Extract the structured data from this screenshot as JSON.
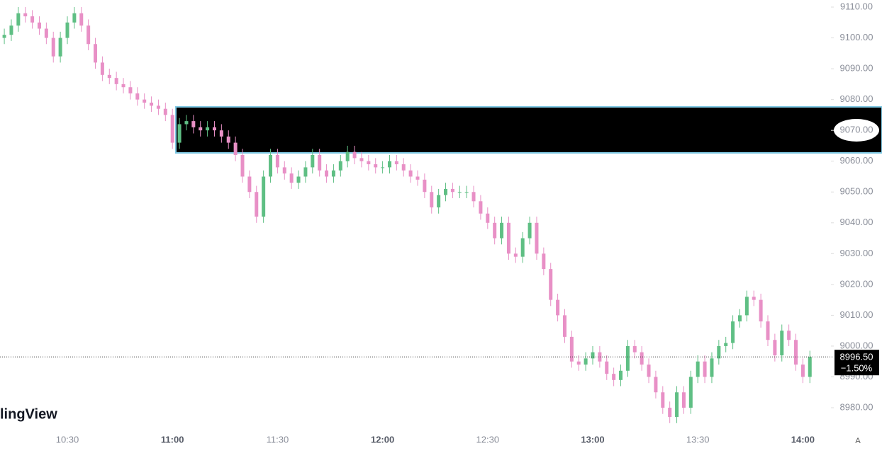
{
  "chart_data": {
    "type": "candlestick",
    "watermark": "lingView",
    "button": "A",
    "colors": {
      "up": "#5fbf84",
      "down": "#e890c6"
    },
    "x": [
      "10:12",
      "10:14",
      "10:16",
      "10:18",
      "10:20",
      "10:22",
      "10:24",
      "10:26",
      "10:28",
      "10:30",
      "10:32",
      "10:34",
      "10:36",
      "10:38",
      "10:40",
      "10:42",
      "10:44",
      "10:46",
      "10:48",
      "10:50",
      "10:52",
      "10:54",
      "10:56",
      "10:58",
      "11:00",
      "11:02",
      "11:04",
      "11:06",
      "11:08",
      "11:10",
      "11:12",
      "11:14",
      "11:16",
      "11:18",
      "11:20",
      "11:22",
      "11:24",
      "11:26",
      "11:28",
      "11:30",
      "11:32",
      "11:34",
      "11:36",
      "11:38",
      "11:40",
      "11:42",
      "11:44",
      "11:46",
      "11:48",
      "11:50",
      "11:52",
      "11:54",
      "11:56",
      "11:58",
      "12:00",
      "12:02",
      "12:04",
      "12:06",
      "12:08",
      "12:10",
      "12:12",
      "12:14",
      "12:16",
      "12:18",
      "12:20",
      "12:22",
      "12:24",
      "12:26",
      "12:28",
      "12:30",
      "12:32",
      "12:34",
      "12:36",
      "12:38",
      "12:40",
      "12:42",
      "12:44",
      "12:46",
      "12:48",
      "12:50",
      "12:52",
      "12:54",
      "12:56",
      "12:58",
      "13:00",
      "13:02",
      "13:04",
      "13:06",
      "13:08",
      "13:10",
      "13:12",
      "13:14",
      "13:16",
      "13:18",
      "13:20",
      "13:22",
      "13:24",
      "13:26",
      "13:28",
      "13:30",
      "13:32",
      "13:34",
      "13:36",
      "13:38",
      "13:40",
      "13:42",
      "13:44",
      "13:46",
      "13:48",
      "13:50",
      "13:52",
      "13:54",
      "13:56",
      "13:58",
      "14:00",
      "14:02"
    ],
    "open": [
      9100,
      9101,
      9104,
      9108,
      9107,
      9105,
      9103,
      9100,
      9094,
      9100,
      9105,
      9108,
      9104,
      9098,
      9092,
      9088,
      9087,
      9085,
      9084,
      9082,
      9080,
      9079,
      9078,
      9077,
      9075,
      9066,
      9072,
      9073,
      9071,
      9070,
      9071,
      9070,
      9068,
      9066,
      9062,
      9055,
      9050,
      9042,
      9055,
      9062,
      9058,
      9056,
      9053,
      9055,
      9058,
      9062,
      9057,
      9055,
      9057,
      9060,
      9063,
      9061,
      9060,
      9059,
      9058,
      9058,
      9060,
      9059,
      9057,
      9055,
      9054,
      9050,
      9045,
      9049,
      9051,
      9050,
      9050,
      9050,
      9047,
      9043,
      9040,
      9035,
      9040,
      9030,
      9029,
      9035,
      9040,
      9030,
      9025,
      9015,
      9010,
      9003,
      8995,
      8994,
      8996,
      8998,
      8995,
      8991,
      8989,
      8992,
      9000,
      8998,
      8994,
      8990,
      8985,
      8980,
      8977,
      8985,
      8980,
      8990,
      8995,
      8990,
      8996,
      9000,
      9001,
      9008,
      9010,
      9016,
      9015,
      9008,
      9002,
      8997,
      9005,
      9002,
      8994,
      8990
    ],
    "high": [
      9103,
      9106,
      9110,
      9110,
      9109,
      9107,
      9105,
      9102,
      9102,
      9107,
      9110,
      9110,
      9106,
      9100,
      9094,
      9090,
      9089,
      9087,
      9086,
      9084,
      9082,
      9081,
      9080,
      9079,
      9077,
      9074,
      9075,
      9075,
      9073,
      9073,
      9073,
      9072,
      9070,
      9068,
      9064,
      9057,
      9052,
      9057,
      9064,
      9064,
      9060,
      9058,
      9057,
      9060,
      9064,
      9064,
      9059,
      9059,
      9062,
      9065,
      9065,
      9063,
      9062,
      9061,
      9060,
      9062,
      9062,
      9061,
      9059,
      9057,
      9056,
      9052,
      9051,
      9053,
      9053,
      9052,
      9052,
      9052,
      9049,
      9045,
      9042,
      9042,
      9042,
      9032,
      9037,
      9042,
      9042,
      9032,
      9027,
      9017,
      9012,
      9005,
      8997,
      8998,
      9000,
      9000,
      8997,
      8993,
      8994,
      9002,
      9002,
      9000,
      8996,
      8992,
      8987,
      8982,
      8987,
      8987,
      8992,
      8997,
      8997,
      8998,
      9002,
      9003,
      9010,
      9012,
      9018,
      9018,
      9017,
      9010,
      9004,
      9007,
      9007,
      9004,
      8996,
      8998.5
    ],
    "low": [
      9098,
      9099,
      9102,
      9105,
      9103,
      9101,
      9098,
      9092,
      9092,
      9098,
      9103,
      9102,
      9096,
      9090,
      9086,
      9085,
      9083,
      9082,
      9080,
      9078,
      9077,
      9076,
      9075,
      9073,
      9064,
      9064,
      9070,
      9069,
      9068,
      9068,
      9068,
      9066,
      9064,
      9060,
      9053,
      9048,
      9040,
      9040,
      9053,
      9056,
      9054,
      9051,
      9051,
      9053,
      9056,
      9055,
      9053,
      9053,
      9055,
      9058,
      9059,
      9058,
      9057,
      9056,
      9056,
      9056,
      9057,
      9055,
      9053,
      9052,
      9048,
      9043,
      9043,
      9047,
      9048,
      9048,
      9048,
      9045,
      9041,
      9038,
      9033,
      9033,
      9028,
      9027,
      9027,
      9033,
      9028,
      9023,
      9013,
      9008,
      9001,
      8993,
      8992,
      8992,
      8994,
      8993,
      8989,
      8987,
      8987,
      8990,
      8996,
      8992,
      8988,
      8983,
      8978,
      8975,
      8975,
      8978,
      8978,
      8988,
      8988,
      8988,
      8994,
      8998,
      8999,
      9006,
      9008,
      9013,
      9006,
      9000,
      8995,
      8995,
      9000,
      8992,
      8988,
      8988
    ],
    "close": [
      9101,
      9104,
      9108,
      9107,
      9105,
      9103,
      9100,
      9094,
      9100,
      9105,
      9108,
      9104,
      9098,
      9092,
      9088,
      9087,
      9085,
      9084,
      9082,
      9080,
      9079,
      9078,
      9077,
      9075,
      9066,
      9072,
      9073,
      9071,
      9070,
      9071,
      9070,
      9068,
      9066,
      9062,
      9055,
      9050,
      9042,
      9055,
      9062,
      9058,
      9056,
      9053,
      9055,
      9058,
      9062,
      9057,
      9055,
      9057,
      9060,
      9063,
      9061,
      9060,
      9059,
      9058,
      9058,
      9060,
      9059,
      9057,
      9055,
      9054,
      9050,
      9045,
      9049,
      9051,
      9050,
      9050,
      9050,
      9047,
      9043,
      9040,
      9035,
      9040,
      9030,
      9029,
      9035,
      9040,
      9030,
      9025,
      9015,
      9010,
      9003,
      8995,
      8994,
      8996,
      8998,
      8995,
      8991,
      8989,
      8992,
      9000,
      8998,
      8994,
      8990,
      8985,
      8980,
      8977,
      8985,
      8980,
      8990,
      8995,
      8990,
      8996,
      9000,
      9001,
      9008,
      9010,
      9016,
      9015,
      9008,
      9002,
      8997,
      9005,
      9002,
      8994,
      8990,
      8996.5
    ],
    "ylim": [
      8975,
      9112
    ],
    "yticks": [
      {
        "value": 8980,
        "label": "8980.00"
      },
      {
        "value": 8990,
        "label": "8990.00"
      },
      {
        "value": 9000,
        "label": "9000.00"
      },
      {
        "value": 9010,
        "label": "9010.00"
      },
      {
        "value": 9020,
        "label": "9020.00"
      },
      {
        "value": 9030,
        "label": "9030.00"
      },
      {
        "value": 9040,
        "label": "9040.00"
      },
      {
        "value": 9050,
        "label": "9050.00"
      },
      {
        "value": 9060,
        "label": "9060.00"
      },
      {
        "value": 9070,
        "label": "9070.00"
      },
      {
        "value": 9080,
        "label": "9080.00"
      },
      {
        "value": 9090,
        "label": "9090.00"
      },
      {
        "value": 9100,
        "label": "9100.00"
      },
      {
        "value": 9110,
        "label": "9110.00"
      }
    ],
    "xticks": [
      "10:30",
      "11:00",
      "11:30",
      "12:00",
      "12:30",
      "13:00",
      "13:30",
      "14:00"
    ],
    "last_price": {
      "value": 8996.5,
      "label": "8996.50"
    },
    "change_label": "−1.50%"
  }
}
